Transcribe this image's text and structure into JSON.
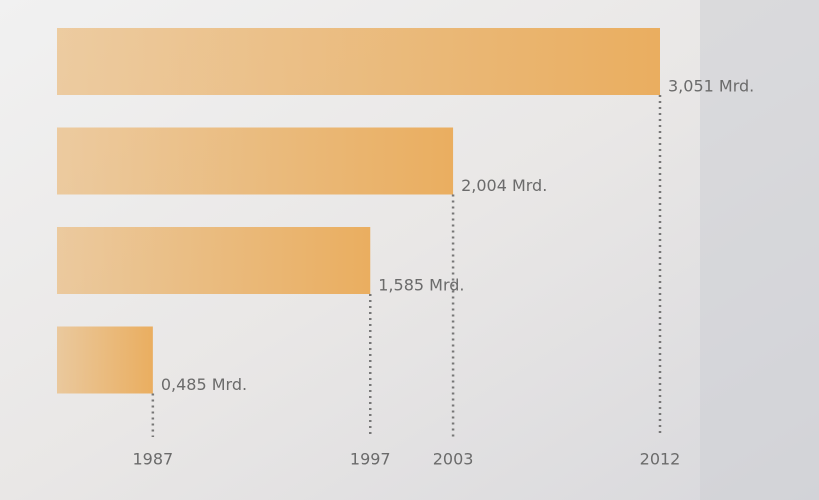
{
  "chart_data": {
    "type": "bar",
    "orientation": "horizontal",
    "categories": [
      "1987",
      "1997",
      "2003",
      "2012"
    ],
    "values": [
      0.485,
      1.585,
      2.004,
      3.051
    ],
    "value_labels": [
      "0,485 Mrd.",
      "1,585 Mrd.",
      "2,004 Mrd.",
      "3,051 Mrd."
    ],
    "color": "#eaae60"
  }
}
